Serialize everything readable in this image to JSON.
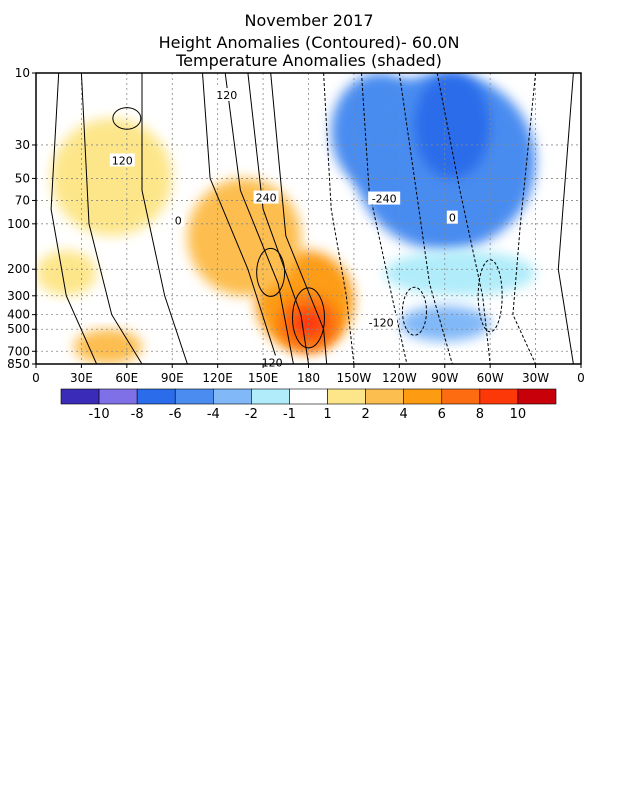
{
  "chart_data": {
    "type": "heatmap",
    "title": "November 2017",
    "subtitle_1": "Height Anomalies (Contoured)- 60.0N",
    "subtitle_2": "Temperature Anomalies (shaded)",
    "x_ticks": [
      "0",
      "30E",
      "60E",
      "90E",
      "120E",
      "150E",
      "180",
      "150W",
      "120W",
      "90W",
      "60W",
      "30W",
      "0"
    ],
    "x_lons": [
      0,
      30,
      60,
      90,
      120,
      150,
      180,
      210,
      240,
      270,
      300,
      330,
      360
    ],
    "y_ticks": [
      "10",
      "30",
      "50",
      "70",
      "100",
      "200",
      "300",
      "400",
      "500",
      "700",
      "850"
    ],
    "y_levels": [
      10,
      30,
      50,
      70,
      100,
      200,
      300,
      400,
      500,
      700,
      850
    ],
    "ylim": [
      850,
      10
    ],
    "y_scale": "log",
    "xlim": [
      0,
      360
    ],
    "colorbar": {
      "labels": [
        "-10",
        "-8",
        "-6",
        "-4",
        "-2",
        "-1",
        "1",
        "2",
        "4",
        "6",
        "8",
        "10"
      ],
      "colors": [
        "#3a2cb8",
        "#8070e8",
        "#2a6cea",
        "#4a8cf0",
        "#80b8f8",
        "#b0ecfa",
        "#ffffff",
        "#fde68a",
        "#fdbe50",
        "#fd9c12",
        "#fd6c10",
        "#fd3808",
        "#c8000a"
      ]
    },
    "temperature_regions": [
      {
        "lon": [
          145,
          210
        ],
        "p": [
          150,
          700
        ],
        "value": 5,
        "color": "#fd9c12"
      },
      {
        "lon": [
          160,
          200
        ],
        "p": [
          300,
          700
        ],
        "value": 8,
        "color": "#fd6c10"
      },
      {
        "lon": [
          170,
          190
        ],
        "p": [
          380,
          550
        ],
        "value": 10,
        "color": "#fd3808"
      },
      {
        "lon": [
          100,
          175
        ],
        "p": [
          50,
          300
        ],
        "value": 3,
        "color": "#fdbe50"
      },
      {
        "lon": [
          10,
          90
        ],
        "p": [
          20,
          120
        ],
        "value": 1.5,
        "color": "#fde68a"
      },
      {
        "lon": [
          0,
          40
        ],
        "p": [
          150,
          300
        ],
        "value": 1.5,
        "color": "#fde68a"
      },
      {
        "lon": [
          25,
          70
        ],
        "p": [
          500,
          850
        ],
        "value": 3,
        "color": "#fdbe50"
      },
      {
        "lon": [
          195,
          260
        ],
        "p": [
          10,
          60
        ],
        "value": -4,
        "color": "#4a8cf0"
      },
      {
        "lon": [
          210,
          330
        ],
        "p": [
          10,
          150
        ],
        "value": -3,
        "color": "#4a8cf0"
      },
      {
        "lon": [
          250,
          300
        ],
        "p": [
          10,
          50
        ],
        "value": -6,
        "color": "#2a6cea"
      },
      {
        "lon": [
          230,
          330
        ],
        "p": [
          150,
          300
        ],
        "value": -1.5,
        "color": "#b0ecfa"
      },
      {
        "lon": [
          240,
          300
        ],
        "p": [
          350,
          600
        ],
        "value": -3,
        "color": "#80b8f8"
      }
    ],
    "contour_labels": [
      {
        "text": "120",
        "lon": 126,
        "p": 14
      },
      {
        "text": "120",
        "lon": 57,
        "p": 38
      },
      {
        "text": "0",
        "lon": 94,
        "p": 95
      },
      {
        "text": "240",
        "lon": 152,
        "p": 67
      },
      {
        "text": "-240",
        "lon": 230,
        "p": 68
      },
      {
        "text": "0",
        "lon": 275,
        "p": 91
      },
      {
        "text": "-120",
        "lon": 228,
        "p": 450
      },
      {
        "text": "120",
        "lon": 156,
        "p": 830
      }
    ]
  }
}
